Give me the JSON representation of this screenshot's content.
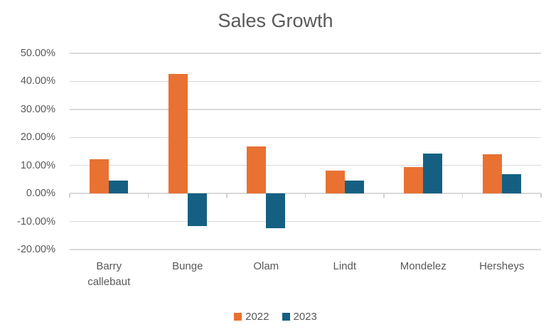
{
  "title": "Sales Growth",
  "colors": {
    "series_2022": "#E97132",
    "series_2023": "#156082",
    "text": "#595959",
    "gridline": "#D9D9D9",
    "background": "#FFFFFF"
  },
  "chart_data": {
    "type": "bar",
    "title": "Sales Growth",
    "categories": [
      "Barry callebaut",
      "Bunge",
      "Olam",
      "Lindt",
      "Mondelez",
      "Hersheys"
    ],
    "series": [
      {
        "name": "2022",
        "color": "#E97132",
        "values": [
          12.2,
          42.7,
          16.8,
          8.2,
          9.5,
          14.1
        ]
      },
      {
        "name": "2023",
        "color": "#156082",
        "values": [
          4.5,
          -11.7,
          -12.3,
          4.6,
          14.2,
          7.0
        ]
      }
    ],
    "value_unit": "percent",
    "ylim": [
      -20,
      50
    ],
    "ytick_step": 10,
    "ytick_labels": [
      "50.00%",
      "40.00%",
      "30.00%",
      "20.00%",
      "10.00%",
      "0.00%",
      "-10.00%",
      "-20.00%"
    ],
    "xlabel": "",
    "ylabel": "",
    "grid": true,
    "legend_position": "bottom",
    "legend_entries": [
      "2022",
      "2023"
    ]
  }
}
